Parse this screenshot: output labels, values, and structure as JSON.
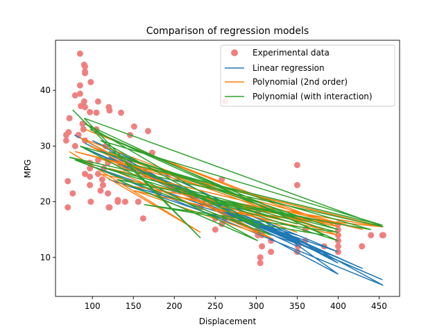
{
  "chart_data": {
    "type": "scatter",
    "title": "Comparison of regression models",
    "xlabel": "Displacement",
    "ylabel": "MPG",
    "xlim": [
      55,
      475
    ],
    "ylim": [
      3,
      49
    ],
    "xticks": [
      100,
      150,
      200,
      250,
      300,
      350,
      400,
      450
    ],
    "yticks": [
      10,
      20,
      30,
      40
    ],
    "legend_position": "top-right",
    "colors": {
      "scatter": "#f08080",
      "linear": "#1f77b4",
      "poly2": "#ff7f0e",
      "interaction": "#2ca02c"
    },
    "legend": [
      {
        "label": "Experimental data",
        "kind": "marker",
        "color": "#f08080"
      },
      {
        "label": "Linear regression",
        "kind": "line",
        "color": "#1f77b4"
      },
      {
        "label": "Polynomial (2nd order)",
        "kind": "line",
        "color": "#ff7f0e"
      },
      {
        "label": "Polynomial (with interaction)",
        "kind": "line",
        "color": "#2ca02c"
      }
    ],
    "scatter_points": [
      [
        85,
        46.6
      ],
      [
        90,
        44.6
      ],
      [
        91,
        44.3
      ],
      [
        91,
        43.4
      ],
      [
        91,
        43.1
      ],
      [
        98,
        41.5
      ],
      [
        85,
        40.9
      ],
      [
        79,
        39.1
      ],
      [
        85,
        39.4
      ],
      [
        90,
        38.0
      ],
      [
        107,
        38.0
      ],
      [
        120,
        37.0
      ],
      [
        121,
        36.4
      ],
      [
        97,
        36.1
      ],
      [
        105,
        36.0
      ],
      [
        135,
        36.0
      ],
      [
        91,
        37.0
      ],
      [
        86,
        37.2
      ],
      [
        262,
        38.0
      ],
      [
        68,
        32.0
      ],
      [
        68,
        31.0
      ],
      [
        72,
        35.0
      ],
      [
        71,
        32.5
      ],
      [
        70,
        23.7
      ],
      [
        70,
        19.0
      ],
      [
        76,
        21.5
      ],
      [
        79,
        30.0
      ],
      [
        83,
        32.0
      ],
      [
        88,
        34.0
      ],
      [
        89,
        33.0
      ],
      [
        91,
        31.0
      ],
      [
        97,
        27.0
      ],
      [
        97,
        26.0
      ],
      [
        97,
        24.5
      ],
      [
        97,
        23.0
      ],
      [
        98,
        20.0
      ],
      [
        91,
        25.0
      ],
      [
        105,
        33.0
      ],
      [
        107,
        27.5
      ],
      [
        107,
        25.0
      ],
      [
        110,
        22.0
      ],
      [
        112,
        24.0
      ],
      [
        114,
        26.0
      ],
      [
        113,
        23.0
      ],
      [
        116,
        30.0
      ],
      [
        119,
        27.0
      ],
      [
        119,
        21.5
      ],
      [
        120,
        19.0
      ],
      [
        121,
        19.0
      ],
      [
        131,
        20.0
      ],
      [
        131,
        20.3
      ],
      [
        134,
        27.0
      ],
      [
        140,
        20.0
      ],
      [
        140,
        26.0
      ],
      [
        145,
        27.2
      ],
      [
        146,
        32.0
      ],
      [
        151,
        33.5
      ],
      [
        156,
        20.0
      ],
      [
        162,
        17.0
      ],
      [
        168,
        32.7
      ],
      [
        173,
        28.8
      ],
      [
        181,
        21.5
      ],
      [
        200,
        22.0
      ],
      [
        225,
        20.5
      ],
      [
        232,
        19.0
      ],
      [
        250,
        15.0
      ],
      [
        250,
        17.0
      ],
      [
        258,
        24.0
      ],
      [
        258,
        16.0
      ],
      [
        262,
        17.0
      ],
      [
        302,
        14.0
      ],
      [
        302,
        15.0
      ],
      [
        305,
        9.0
      ],
      [
        305,
        10.0
      ],
      [
        307,
        12.0
      ],
      [
        307,
        14.0
      ],
      [
        318,
        11.0
      ],
      [
        318,
        13.0
      ],
      [
        350,
        11.0
      ],
      [
        350,
        13.0
      ],
      [
        350,
        26.6
      ],
      [
        350,
        23.0
      ],
      [
        351,
        12.0
      ],
      [
        360,
        13.0
      ],
      [
        383,
        12.0
      ],
      [
        400,
        11.0
      ],
      [
        400,
        12.0
      ],
      [
        400,
        13.0
      ],
      [
        400,
        14.0
      ],
      [
        400,
        15.0
      ],
      [
        400,
        16.0
      ],
      [
        429,
        12.0
      ],
      [
        440,
        14.0
      ],
      [
        454,
        14.0
      ],
      [
        455,
        14.0
      ],
      [
        360,
        15.0
      ],
      [
        302,
        18.0
      ]
    ],
    "linear_line": [
      [
        78,
        32.0
      ],
      [
        400,
        7.0
      ],
      [
        305,
        17.0
      ],
      [
        455,
        5.0
      ],
      [
        97,
        26.5
      ],
      [
        400,
        11.0
      ],
      [
        120,
        28.0
      ],
      [
        350,
        12.0
      ],
      [
        85,
        30.0
      ],
      [
        430,
        8.0
      ],
      [
        140,
        27.0
      ],
      [
        320,
        13.0
      ],
      [
        100,
        31.0
      ],
      [
        318,
        16.0
      ],
      [
        400,
        9.0
      ],
      [
        302,
        16.5
      ],
      [
        150,
        26.0
      ],
      [
        360,
        12.0
      ],
      [
        91,
        30.5
      ],
      [
        383,
        10.5
      ],
      [
        200,
        22.0
      ],
      [
        454,
        6.0
      ],
      [
        250,
        19.0
      ],
      [
        400,
        10.0
      ],
      [
        120,
        24.0
      ],
      [
        350,
        14.0
      ]
    ],
    "poly2_line": [
      [
        72,
        29.0
      ],
      [
        232,
        14.5
      ],
      [
        110,
        25.0
      ],
      [
        400,
        15.5
      ],
      [
        91,
        33.0
      ],
      [
        350,
        18.0
      ],
      [
        140,
        23.0
      ],
      [
        455,
        15.5
      ],
      [
        79,
        29.0
      ],
      [
        430,
        15.0
      ],
      [
        120,
        26.0
      ],
      [
        302,
        14.5
      ],
      [
        97,
        30.0
      ],
      [
        400,
        14.0
      ],
      [
        151,
        22.0
      ],
      [
        318,
        13.5
      ],
      [
        85,
        31.5
      ],
      [
        383,
        15.0
      ],
      [
        200,
        21.0
      ],
      [
        400,
        16.0
      ],
      [
        250,
        18.5
      ],
      [
        454,
        15.5
      ],
      [
        105,
        28.0
      ],
      [
        350,
        14.5
      ]
    ],
    "interaction_line": [
      [
        76,
        36.5
      ],
      [
        232,
        13.5
      ],
      [
        90,
        35.0
      ],
      [
        455,
        15.5
      ],
      [
        72,
        28.0
      ],
      [
        400,
        13.0
      ],
      [
        97,
        33.0
      ],
      [
        350,
        17.0
      ],
      [
        120,
        29.0
      ],
      [
        400,
        15.0
      ],
      [
        79,
        27.5
      ],
      [
        318,
        14.0
      ],
      [
        110,
        31.0
      ],
      [
        454,
        15.8
      ],
      [
        140,
        27.0
      ],
      [
        305,
        15.5
      ],
      [
        91,
        34.0
      ],
      [
        383,
        14.0
      ],
      [
        163,
        19.5
      ],
      [
        400,
        14.5
      ],
      [
        200,
        22.5
      ],
      [
        350,
        16.0
      ],
      [
        250,
        20.0
      ],
      [
        440,
        15.0
      ],
      [
        85,
        30.0
      ],
      [
        302,
        13.0
      ],
      [
        130,
        24.0
      ],
      [
        400,
        16.0
      ]
    ]
  }
}
